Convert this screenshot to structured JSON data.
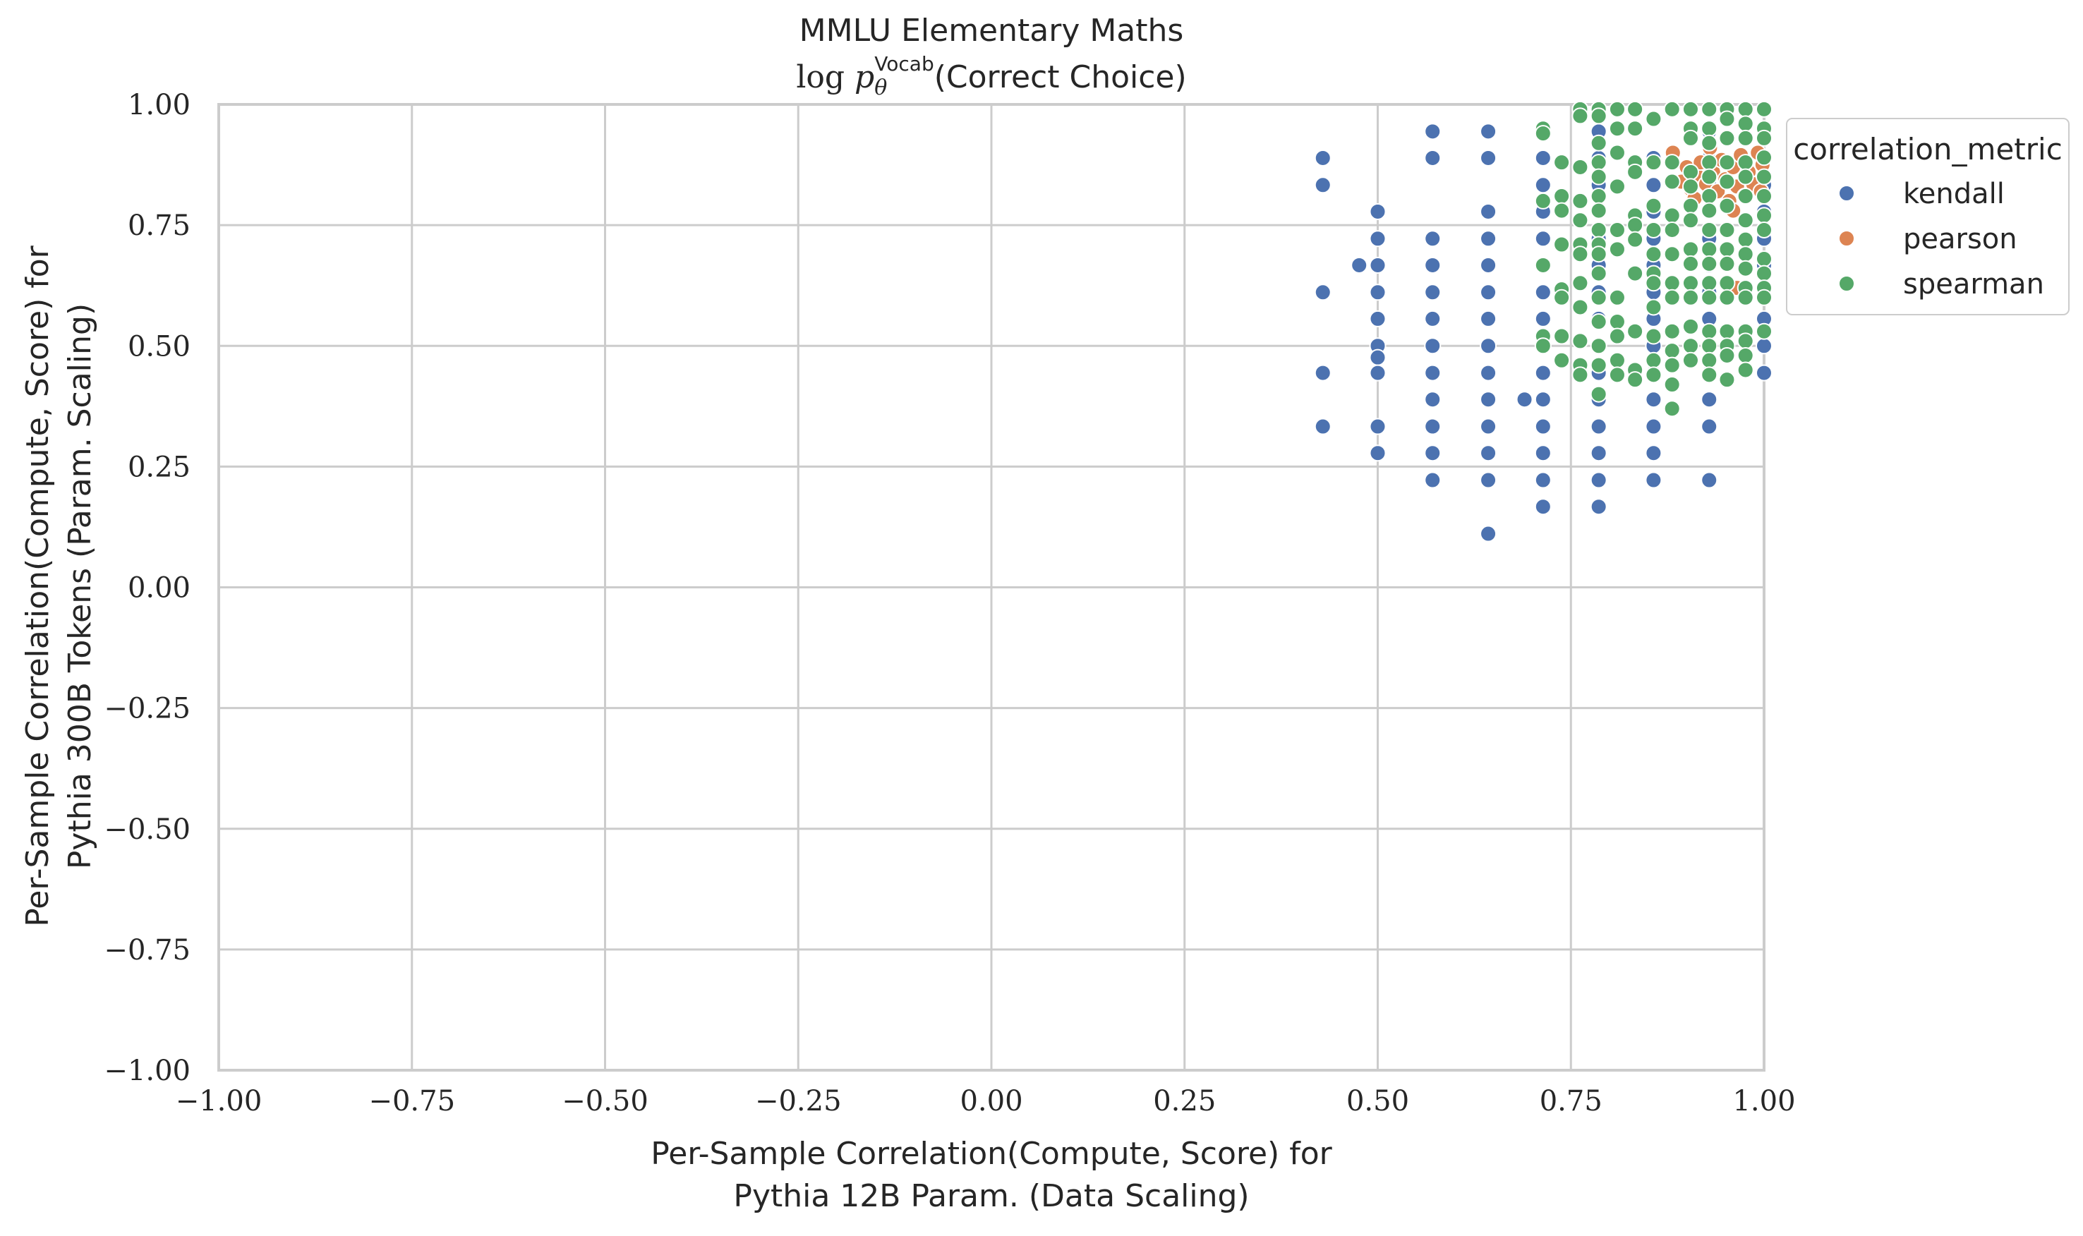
{
  "chart_data": {
    "type": "scatter",
    "title": "MMLU Elementary Maths",
    "subtitle": {
      "prefix": "log ",
      "symbol": "p",
      "subscript": "θ",
      "superscript": "Vocab",
      "suffix": "(Correct Choice)"
    },
    "xlabel": [
      "Per-Sample Correlation(Compute, Score) for",
      "Pythia 12B Param. (Data Scaling)"
    ],
    "ylabel": [
      "Per-Sample Correlation(Compute, Score) for",
      "Pythia 300B Tokens (Param. Scaling)"
    ],
    "xlim": [
      -1.0,
      1.0
    ],
    "ylim": [
      -1.0,
      1.0
    ],
    "xticks": [
      "−1.00",
      "−0.75",
      "−0.50",
      "−0.25",
      "0.00",
      "0.25",
      "0.50",
      "0.75",
      "1.00"
    ],
    "yticks": [
      "−1.00",
      "−0.75",
      "−0.50",
      "−0.25",
      "0.00",
      "0.25",
      "0.50",
      "0.75",
      "1.00"
    ],
    "grid": true,
    "legend": {
      "title": "correlation_metric",
      "placement": "outside upper right"
    },
    "series": [
      {
        "name": "kendall",
        "color": "#4c72b0",
        "points": [
          [
            0.429,
            0.889
          ],
          [
            0.429,
            0.833
          ],
          [
            0.429,
            0.611
          ],
          [
            0.429,
            0.444
          ],
          [
            0.429,
            0.333
          ],
          [
            0.476,
            0.667
          ],
          [
            0.5,
            0.778
          ],
          [
            0.5,
            0.722
          ],
          [
            0.5,
            0.667
          ],
          [
            0.5,
            0.611
          ],
          [
            0.5,
            0.556
          ],
          [
            0.5,
            0.5
          ],
          [
            0.5,
            0.476
          ],
          [
            0.5,
            0.444
          ],
          [
            0.5,
            0.333
          ],
          [
            0.5,
            0.278
          ],
          [
            0.571,
            0.944
          ],
          [
            0.571,
            0.889
          ],
          [
            0.571,
            0.722
          ],
          [
            0.571,
            0.667
          ],
          [
            0.571,
            0.611
          ],
          [
            0.571,
            0.556
          ],
          [
            0.571,
            0.5
          ],
          [
            0.571,
            0.444
          ],
          [
            0.571,
            0.389
          ],
          [
            0.571,
            0.333
          ],
          [
            0.571,
            0.278
          ],
          [
            0.571,
            0.222
          ],
          [
            0.643,
            0.944
          ],
          [
            0.643,
            0.889
          ],
          [
            0.643,
            0.778
          ],
          [
            0.643,
            0.722
          ],
          [
            0.643,
            0.667
          ],
          [
            0.643,
            0.611
          ],
          [
            0.643,
            0.556
          ],
          [
            0.643,
            0.5
          ],
          [
            0.643,
            0.444
          ],
          [
            0.643,
            0.389
          ],
          [
            0.643,
            0.333
          ],
          [
            0.643,
            0.278
          ],
          [
            0.643,
            0.222
          ],
          [
            0.643,
            0.111
          ],
          [
            0.69,
            0.389
          ],
          [
            0.714,
            0.889
          ],
          [
            0.714,
            0.833
          ],
          [
            0.714,
            0.778
          ],
          [
            0.714,
            0.722
          ],
          [
            0.714,
            0.667
          ],
          [
            0.714,
            0.611
          ],
          [
            0.714,
            0.556
          ],
          [
            0.714,
            0.5
          ],
          [
            0.714,
            0.444
          ],
          [
            0.714,
            0.389
          ],
          [
            0.714,
            0.333
          ],
          [
            0.714,
            0.278
          ],
          [
            0.714,
            0.222
          ],
          [
            0.714,
            0.167
          ],
          [
            0.786,
            0.944
          ],
          [
            0.786,
            0.889
          ],
          [
            0.786,
            0.833
          ],
          [
            0.786,
            0.778
          ],
          [
            0.786,
            0.722
          ],
          [
            0.786,
            0.667
          ],
          [
            0.786,
            0.611
          ],
          [
            0.786,
            0.556
          ],
          [
            0.786,
            0.5
          ],
          [
            0.786,
            0.444
          ],
          [
            0.786,
            0.389
          ],
          [
            0.786,
            0.333
          ],
          [
            0.786,
            0.278
          ],
          [
            0.786,
            0.222
          ],
          [
            0.786,
            0.167
          ],
          [
            0.857,
            0.889
          ],
          [
            0.857,
            0.833
          ],
          [
            0.857,
            0.778
          ],
          [
            0.857,
            0.722
          ],
          [
            0.857,
            0.667
          ],
          [
            0.857,
            0.611
          ],
          [
            0.857,
            0.556
          ],
          [
            0.857,
            0.5
          ],
          [
            0.857,
            0.444
          ],
          [
            0.857,
            0.389
          ],
          [
            0.857,
            0.333
          ],
          [
            0.857,
            0.278
          ],
          [
            0.857,
            0.222
          ],
          [
            0.929,
            0.944
          ],
          [
            0.929,
            0.889
          ],
          [
            0.929,
            0.833
          ],
          [
            0.929,
            0.778
          ],
          [
            0.929,
            0.722
          ],
          [
            0.929,
            0.667
          ],
          [
            0.929,
            0.611
          ],
          [
            0.929,
            0.556
          ],
          [
            0.929,
            0.5
          ],
          [
            0.929,
            0.444
          ],
          [
            0.929,
            0.389
          ],
          [
            0.929,
            0.333
          ],
          [
            0.929,
            0.222
          ],
          [
            1.0,
            0.944
          ],
          [
            1.0,
            0.889
          ],
          [
            1.0,
            0.833
          ],
          [
            1.0,
            0.778
          ],
          [
            1.0,
            0.722
          ],
          [
            1.0,
            0.667
          ],
          [
            1.0,
            0.611
          ],
          [
            1.0,
            0.556
          ],
          [
            1.0,
            0.5
          ],
          [
            1.0,
            0.444
          ]
        ]
      },
      {
        "name": "pearson",
        "color": "#dd8452",
        "points": [
          [
            0.882,
            0.9
          ],
          [
            0.893,
            0.84
          ],
          [
            0.9,
            0.87
          ],
          [
            0.905,
            0.825
          ],
          [
            0.912,
            0.855
          ],
          [
            0.918,
            0.88
          ],
          [
            0.925,
            0.835
          ],
          [
            0.93,
            0.91
          ],
          [
            0.934,
            0.86
          ],
          [
            0.94,
            0.82
          ],
          [
            0.945,
            0.885
          ],
          [
            0.95,
            0.845
          ],
          [
            0.955,
            0.8
          ],
          [
            0.96,
            0.87
          ],
          [
            0.965,
            0.83
          ],
          [
            0.97,
            0.895
          ],
          [
            0.975,
            0.81
          ],
          [
            0.98,
            0.86
          ],
          [
            0.986,
            0.835
          ],
          [
            0.992,
            0.9
          ],
          [
            0.996,
            0.82
          ],
          [
            0.998,
            0.875
          ],
          [
            0.91,
            0.805
          ],
          [
            0.965,
            0.62
          ],
          [
            0.96,
            0.78
          ]
        ]
      },
      {
        "name": "spearman",
        "color": "#55a868",
        "points": [
          [
            0.714,
            0.95
          ],
          [
            0.714,
            0.94
          ],
          [
            0.714,
            0.8
          ],
          [
            0.714,
            0.667
          ],
          [
            0.714,
            0.52
          ],
          [
            0.714,
            0.5
          ],
          [
            0.738,
            0.88
          ],
          [
            0.738,
            0.81
          ],
          [
            0.738,
            0.78
          ],
          [
            0.738,
            0.71
          ],
          [
            0.738,
            0.617
          ],
          [
            0.738,
            0.6
          ],
          [
            0.738,
            0.52
          ],
          [
            0.738,
            0.47
          ],
          [
            0.762,
            0.99
          ],
          [
            0.762,
            0.976
          ],
          [
            0.762,
            0.87
          ],
          [
            0.762,
            0.8
          ],
          [
            0.762,
            0.76
          ],
          [
            0.762,
            0.71
          ],
          [
            0.762,
            0.69
          ],
          [
            0.762,
            0.63
          ],
          [
            0.762,
            0.58
          ],
          [
            0.762,
            0.51
          ],
          [
            0.762,
            0.46
          ],
          [
            0.762,
            0.44
          ],
          [
            0.786,
            0.99
          ],
          [
            0.786,
            0.976
          ],
          [
            0.786,
            0.92
          ],
          [
            0.786,
            0.88
          ],
          [
            0.786,
            0.85
          ],
          [
            0.786,
            0.81
          ],
          [
            0.786,
            0.78
          ],
          [
            0.786,
            0.74
          ],
          [
            0.786,
            0.71
          ],
          [
            0.786,
            0.69
          ],
          [
            0.786,
            0.65
          ],
          [
            0.786,
            0.6
          ],
          [
            0.786,
            0.55
          ],
          [
            0.786,
            0.5
          ],
          [
            0.786,
            0.46
          ],
          [
            0.786,
            0.4
          ],
          [
            0.81,
            0.99
          ],
          [
            0.81,
            0.95
          ],
          [
            0.81,
            0.9
          ],
          [
            0.81,
            0.83
          ],
          [
            0.81,
            0.74
          ],
          [
            0.81,
            0.7
          ],
          [
            0.81,
            0.6
          ],
          [
            0.81,
            0.55
          ],
          [
            0.81,
            0.52
          ],
          [
            0.81,
            0.47
          ],
          [
            0.81,
            0.44
          ],
          [
            0.833,
            0.99
          ],
          [
            0.833,
            0.95
          ],
          [
            0.833,
            0.88
          ],
          [
            0.833,
            0.86
          ],
          [
            0.833,
            0.77
          ],
          [
            0.833,
            0.75
          ],
          [
            0.833,
            0.72
          ],
          [
            0.833,
            0.65
          ],
          [
            0.833,
            0.53
          ],
          [
            0.833,
            0.45
          ],
          [
            0.833,
            0.43
          ],
          [
            0.857,
            0.97
          ],
          [
            0.857,
            0.88
          ],
          [
            0.857,
            0.79
          ],
          [
            0.857,
            0.74
          ],
          [
            0.857,
            0.69
          ],
          [
            0.857,
            0.65
          ],
          [
            0.857,
            0.63
          ],
          [
            0.857,
            0.58
          ],
          [
            0.857,
            0.52
          ],
          [
            0.857,
            0.47
          ],
          [
            0.857,
            0.44
          ],
          [
            0.881,
            0.99
          ],
          [
            0.881,
            0.88
          ],
          [
            0.881,
            0.84
          ],
          [
            0.881,
            0.77
          ],
          [
            0.881,
            0.74
          ],
          [
            0.881,
            0.69
          ],
          [
            0.881,
            0.63
          ],
          [
            0.881,
            0.6
          ],
          [
            0.881,
            0.53
          ],
          [
            0.881,
            0.49
          ],
          [
            0.881,
            0.46
          ],
          [
            0.881,
            0.42
          ],
          [
            0.881,
            0.37
          ],
          [
            0.905,
            0.99
          ],
          [
            0.905,
            0.95
          ],
          [
            0.905,
            0.93
          ],
          [
            0.905,
            0.86
          ],
          [
            0.905,
            0.83
          ],
          [
            0.905,
            0.79
          ],
          [
            0.905,
            0.76
          ],
          [
            0.905,
            0.7
          ],
          [
            0.905,
            0.67
          ],
          [
            0.905,
            0.63
          ],
          [
            0.905,
            0.6
          ],
          [
            0.905,
            0.54
          ],
          [
            0.905,
            0.5
          ],
          [
            0.905,
            0.47
          ],
          [
            0.929,
            0.99
          ],
          [
            0.929,
            0.95
          ],
          [
            0.929,
            0.92
          ],
          [
            0.929,
            0.88
          ],
          [
            0.929,
            0.85
          ],
          [
            0.929,
            0.81
          ],
          [
            0.929,
            0.78
          ],
          [
            0.929,
            0.74
          ],
          [
            0.929,
            0.7
          ],
          [
            0.929,
            0.67
          ],
          [
            0.929,
            0.63
          ],
          [
            0.929,
            0.6
          ],
          [
            0.929,
            0.53
          ],
          [
            0.929,
            0.5
          ],
          [
            0.929,
            0.47
          ],
          [
            0.929,
            0.44
          ],
          [
            0.952,
            0.99
          ],
          [
            0.952,
            0.97
          ],
          [
            0.952,
            0.93
          ],
          [
            0.952,
            0.88
          ],
          [
            0.952,
            0.84
          ],
          [
            0.952,
            0.79
          ],
          [
            0.952,
            0.74
          ],
          [
            0.952,
            0.7
          ],
          [
            0.952,
            0.67
          ],
          [
            0.952,
            0.63
          ],
          [
            0.952,
            0.6
          ],
          [
            0.952,
            0.53
          ],
          [
            0.952,
            0.5
          ],
          [
            0.952,
            0.48
          ],
          [
            0.952,
            0.43
          ],
          [
            0.976,
            0.99
          ],
          [
            0.976,
            0.96
          ],
          [
            0.976,
            0.93
          ],
          [
            0.976,
            0.88
          ],
          [
            0.976,
            0.85
          ],
          [
            0.976,
            0.81
          ],
          [
            0.976,
            0.76
          ],
          [
            0.976,
            0.72
          ],
          [
            0.976,
            0.69
          ],
          [
            0.976,
            0.66
          ],
          [
            0.976,
            0.62
          ],
          [
            0.976,
            0.6
          ],
          [
            0.976,
            0.53
          ],
          [
            0.976,
            0.51
          ],
          [
            0.976,
            0.48
          ],
          [
            0.976,
            0.45
          ],
          [
            1.0,
            0.99
          ],
          [
            1.0,
            0.95
          ],
          [
            1.0,
            0.93
          ],
          [
            1.0,
            0.89
          ],
          [
            1.0,
            0.85
          ],
          [
            1.0,
            0.81
          ],
          [
            1.0,
            0.77
          ],
          [
            1.0,
            0.74
          ],
          [
            1.0,
            0.68
          ],
          [
            1.0,
            0.65
          ],
          [
            1.0,
            0.62
          ],
          [
            1.0,
            0.6
          ],
          [
            1.0,
            0.53
          ]
        ]
      }
    ]
  }
}
